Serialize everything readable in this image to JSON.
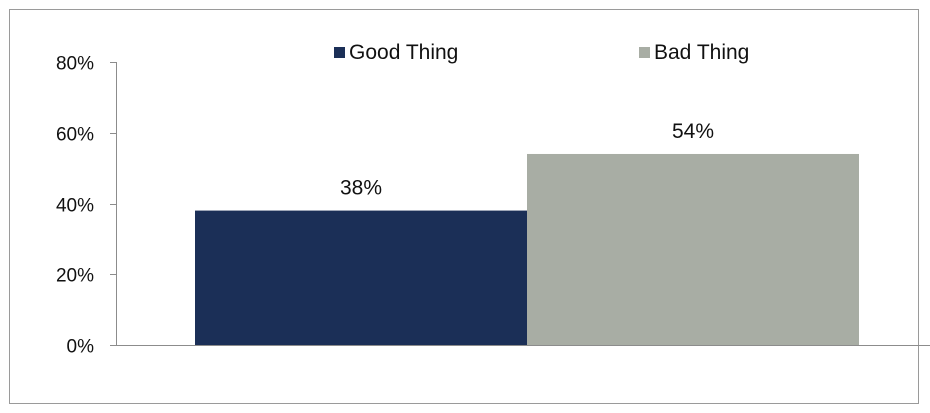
{
  "chart_data": {
    "type": "bar",
    "categories": [
      ""
    ],
    "series": [
      {
        "name": "Good Thing",
        "values": [
          38
        ],
        "color": "#1b2f57",
        "label": "38%"
      },
      {
        "name": "Bad Thing",
        "values": [
          54
        ],
        "color": "#a8ada4",
        "label": "54%"
      }
    ],
    "ylim": [
      0,
      80
    ],
    "yticks": [
      {
        "value": 0,
        "label": "0%"
      },
      {
        "value": 20,
        "label": "20%"
      },
      {
        "value": 40,
        "label": "40%"
      },
      {
        "value": 60,
        "label": "60%"
      },
      {
        "value": 80,
        "label": "80%"
      }
    ],
    "grid": false,
    "legend_position": "top"
  }
}
